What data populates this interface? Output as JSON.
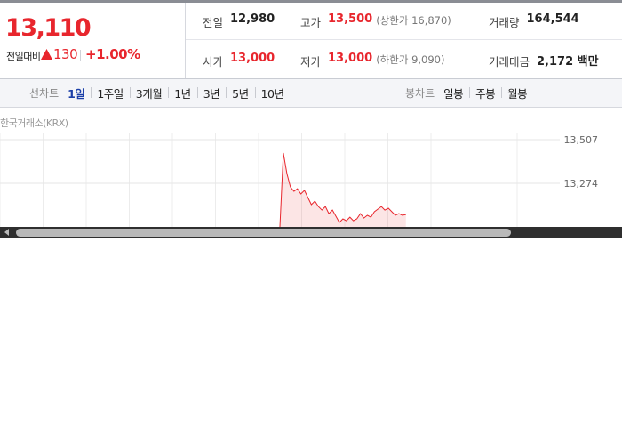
{
  "price": {
    "current": "13,110",
    "change_label": "전일대비",
    "change": "130",
    "change_rate": "+1.00%"
  },
  "stats": [
    [
      {
        "label": "전일",
        "value": "12,980"
      },
      {
        "label": "고가",
        "value": "13,500",
        "color": "#e8262d",
        "note": "(상한가 16,870)"
      },
      {
        "label": "거래량",
        "value": "164,544"
      }
    ],
    [
      {
        "label": "시가",
        "value": "13,000",
        "color": "#e8262d"
      },
      {
        "label": "저가",
        "value": "13,000",
        "color": "#e8262d",
        "note": "(하한가 9,090)"
      },
      {
        "label": "거래대금",
        "value": "2,172 백만"
      }
    ]
  ],
  "line_tabs": {
    "label": "선차트",
    "items": [
      "1일",
      "1주일",
      "3개월",
      "1년",
      "3년",
      "5년",
      "10년"
    ],
    "selected": 0
  },
  "candle_tabs": {
    "label": "봉차트",
    "items": [
      "일봉",
      "주봉",
      "월봉"
    ]
  },
  "chart_data": {
    "type": "line",
    "source": "한국거래소(KRX)",
    "color": "#e8262d",
    "x": [
      80,
      81,
      82,
      83,
      84,
      85,
      86,
      87,
      88,
      89,
      90,
      91,
      92,
      93,
      94,
      95,
      96,
      97,
      98,
      99,
      100,
      101,
      102,
      103,
      104,
      105,
      106,
      107,
      108,
      109,
      110,
      111,
      112,
      113,
      114,
      115,
      116
    ],
    "values": [
      13041,
      13436,
      13326,
      13255,
      13231,
      13245,
      13217,
      13236,
      13198,
      13160,
      13179,
      13150,
      13131,
      13150,
      13112,
      13131,
      13098,
      13065,
      13084,
      13074,
      13093,
      13074,
      13084,
      13112,
      13088,
      13103,
      13093,
      13122,
      13136,
      13150,
      13131,
      13141,
      13122,
      13103,
      13112,
      13103,
      13107
    ],
    "xlim": [
      0,
      160
    ],
    "ylim": [
      13041,
      13507
    ],
    "yticks": [
      {
        "value": 13507,
        "label": "13,507"
      },
      {
        "value": 13274,
        "label": "13,274"
      }
    ],
    "grid": true
  }
}
